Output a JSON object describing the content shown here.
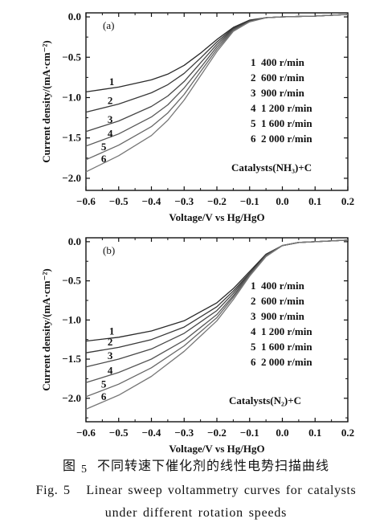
{
  "chart_data": [
    {
      "type": "line",
      "panel_tag": "(a)",
      "xlabel": "Voltage/V vs Hg/HgO",
      "ylabel": "Current density/(mA·cm⁻²)",
      "xlim": [
        -0.6,
        0.2
      ],
      "ylim": [
        -2.15,
        0.05
      ],
      "xticks": [
        -0.6,
        -0.5,
        -0.4,
        -0.3,
        -0.2,
        -0.1,
        0.0,
        0.1,
        0.2
      ],
      "xtick_labels": [
        "−0.6",
        "−0.5",
        "−0.4",
        "−0.3",
        "−0.2",
        "−0.1",
        "0.0",
        "0.1",
        "0.2"
      ],
      "yticks": [
        0.0,
        -0.5,
        -1.0,
        -1.5,
        -2.0
      ],
      "ytick_labels": [
        "0.0",
        "−0.5",
        "−1.0",
        "−1.5",
        "−2.0"
      ],
      "annotation": "Catalysts(NH₃)+C",
      "legend": [
        "1  400 r/min",
        "2  600 r/min",
        "3  900 r/min",
        "4  1 200 r/min",
        "5  1 600 r/min",
        "6  2 000 r/min"
      ],
      "series": [
        {
          "name": "1",
          "x": [
            -0.6,
            -0.5,
            -0.4,
            -0.35,
            -0.3,
            -0.25,
            -0.2,
            -0.15,
            -0.1,
            -0.05,
            0.0,
            0.1,
            0.2
          ],
          "y": [
            -0.93,
            -0.87,
            -0.78,
            -0.71,
            -0.6,
            -0.45,
            -0.28,
            -0.13,
            -0.04,
            -0.01,
            0.0,
            0.01,
            0.03
          ]
        },
        {
          "name": "2",
          "x": [
            -0.6,
            -0.5,
            -0.4,
            -0.35,
            -0.3,
            -0.25,
            -0.2,
            -0.15,
            -0.1,
            -0.05,
            0.0,
            0.1,
            0.2
          ],
          "y": [
            -1.18,
            -1.08,
            -0.94,
            -0.84,
            -0.7,
            -0.51,
            -0.31,
            -0.14,
            -0.05,
            -0.01,
            0.0,
            0.01,
            0.03
          ]
        },
        {
          "name": "3",
          "x": [
            -0.6,
            -0.5,
            -0.4,
            -0.35,
            -0.3,
            -0.25,
            -0.2,
            -0.15,
            -0.1,
            -0.05,
            0.0,
            0.1,
            0.2
          ],
          "y": [
            -1.42,
            -1.29,
            -1.11,
            -0.98,
            -0.8,
            -0.57,
            -0.34,
            -0.15,
            -0.05,
            -0.01,
            0.0,
            0.01,
            0.03
          ]
        },
        {
          "name": "4",
          "x": [
            -0.6,
            -0.5,
            -0.4,
            -0.35,
            -0.3,
            -0.25,
            -0.2,
            -0.15,
            -0.1,
            -0.05,
            0.0,
            0.1,
            0.2
          ],
          "y": [
            -1.6,
            -1.45,
            -1.24,
            -1.09,
            -0.88,
            -0.63,
            -0.37,
            -0.16,
            -0.06,
            -0.01,
            0.0,
            0.01,
            0.03
          ]
        },
        {
          "name": "5",
          "x": [
            -0.6,
            -0.5,
            -0.4,
            -0.35,
            -0.3,
            -0.25,
            -0.2,
            -0.15,
            -0.1,
            -0.05,
            0.0,
            0.1,
            0.2
          ],
          "y": [
            -1.77,
            -1.59,
            -1.36,
            -1.19,
            -0.96,
            -0.68,
            -0.4,
            -0.17,
            -0.06,
            -0.01,
            0.0,
            0.01,
            0.03
          ]
        },
        {
          "name": "6",
          "x": [
            -0.6,
            -0.5,
            -0.4,
            -0.35,
            -0.3,
            -0.25,
            -0.2,
            -0.15,
            -0.1,
            -0.05,
            0.0,
            0.1,
            0.2
          ],
          "y": [
            -1.92,
            -1.72,
            -1.47,
            -1.28,
            -1.03,
            -0.73,
            -0.43,
            -0.18,
            -0.06,
            -0.01,
            0.0,
            0.01,
            0.03
          ]
        }
      ]
    },
    {
      "type": "line",
      "panel_tag": "(b)",
      "xlabel": "Voltage/V vs Hg/HgO",
      "ylabel": "Current density/(mA·cm⁻²)",
      "xlim": [
        -0.6,
        0.2
      ],
      "ylim": [
        -2.3,
        0.05
      ],
      "xticks": [
        -0.6,
        -0.5,
        -0.4,
        -0.3,
        -0.2,
        -0.1,
        0.0,
        0.1,
        0.2
      ],
      "xtick_labels": [
        "−0.6",
        "−0.5",
        "−0.4",
        "−0.3",
        "−0.2",
        "−0.1",
        "0.0",
        "0.1",
        "0.2"
      ],
      "yticks": [
        0.0,
        -0.5,
        -1.0,
        -1.5,
        -2.0
      ],
      "ytick_labels": [
        "0.0",
        "−0.5",
        "−1.0",
        "−1.5",
        "−2.0"
      ],
      "annotation": "Catalysts(N₂)+C",
      "legend": [
        "1  400 r/min",
        "2  600 r/min",
        "3  900 r/min",
        "4  1 200 r/min",
        "5  1 600 r/min",
        "6  2 000 r/min"
      ],
      "series": [
        {
          "name": "1",
          "x": [
            -0.6,
            -0.5,
            -0.4,
            -0.3,
            -0.2,
            -0.15,
            -0.1,
            -0.05,
            0.0,
            0.05,
            0.1,
            0.2
          ],
          "y": [
            -1.27,
            -1.22,
            -1.14,
            -1.01,
            -0.78,
            -0.6,
            -0.38,
            -0.16,
            -0.05,
            -0.01,
            0.0,
            0.02
          ]
        },
        {
          "name": "2",
          "x": [
            -0.6,
            -0.5,
            -0.4,
            -0.3,
            -0.2,
            -0.15,
            -0.1,
            -0.05,
            0.0,
            0.05,
            0.1,
            0.2
          ],
          "y": [
            -1.42,
            -1.35,
            -1.25,
            -1.09,
            -0.83,
            -0.63,
            -0.4,
            -0.17,
            -0.05,
            -0.01,
            0.0,
            0.02
          ]
        },
        {
          "name": "3",
          "x": [
            -0.6,
            -0.5,
            -0.4,
            -0.3,
            -0.2,
            -0.15,
            -0.1,
            -0.05,
            0.0,
            0.05,
            0.1,
            0.2
          ],
          "y": [
            -1.6,
            -1.5,
            -1.37,
            -1.17,
            -0.88,
            -0.66,
            -0.41,
            -0.17,
            -0.05,
            -0.01,
            0.0,
            0.02
          ]
        },
        {
          "name": "4",
          "x": [
            -0.6,
            -0.5,
            -0.4,
            -0.3,
            -0.2,
            -0.15,
            -0.1,
            -0.05,
            0.0,
            0.05,
            0.1,
            0.2
          ],
          "y": [
            -1.8,
            -1.67,
            -1.5,
            -1.26,
            -0.93,
            -0.69,
            -0.42,
            -0.18,
            -0.05,
            -0.01,
            0.0,
            0.02
          ]
        },
        {
          "name": "5",
          "x": [
            -0.6,
            -0.5,
            -0.4,
            -0.3,
            -0.2,
            -0.15,
            -0.1,
            -0.05,
            0.0,
            0.05,
            0.1,
            0.2
          ],
          "y": [
            -1.98,
            -1.82,
            -1.61,
            -1.33,
            -0.97,
            -0.71,
            -0.43,
            -0.18,
            -0.05,
            -0.01,
            0.0,
            0.02
          ]
        },
        {
          "name": "6",
          "x": [
            -0.6,
            -0.5,
            -0.4,
            -0.3,
            -0.2,
            -0.15,
            -0.1,
            -0.05,
            0.0,
            0.05,
            0.1,
            0.2
          ],
          "y": [
            -2.14,
            -1.96,
            -1.72,
            -1.4,
            -1.01,
            -0.74,
            -0.44,
            -0.19,
            -0.05,
            -0.01,
            0.0,
            0.02
          ]
        }
      ]
    }
  ],
  "caption": {
    "cn_fig_label": "图",
    "cn_fig_num": "5",
    "cn_text": "不同转速下催化剂的线性电势扫描曲线",
    "en_line1": "Fig. 5   Linear sweep voltammetry curves for catalysts",
    "en_line2": "under different rotation speeds"
  }
}
